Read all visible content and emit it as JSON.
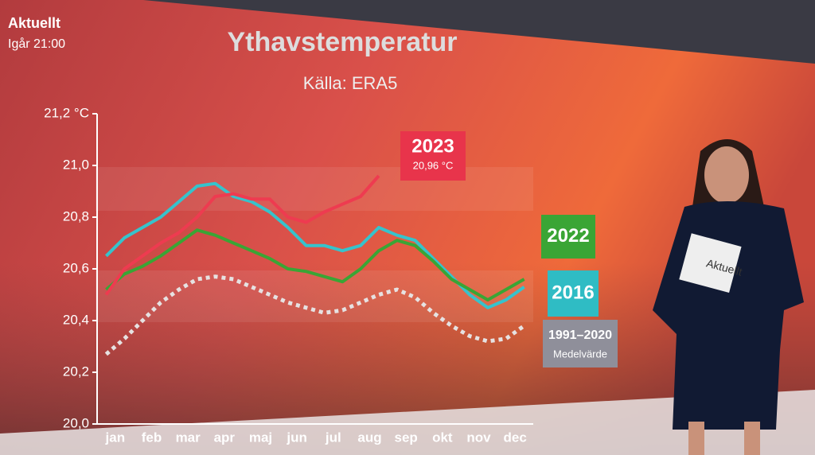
{
  "header": {
    "channel": "Aktuellt",
    "time": "Igår 21:00"
  },
  "chart_data": {
    "type": "line",
    "title": "Ythavstemperatur",
    "subtitle": "Källa: ERA5",
    "categories": [
      "jan",
      null,
      "feb",
      null,
      "mar",
      null,
      "apr",
      null,
      "maj",
      null,
      "jun",
      null,
      "jul",
      null,
      "aug",
      null,
      "sep",
      null,
      "okt",
      null,
      "nov",
      null,
      "dec",
      null
    ],
    "series": [
      {
        "name": "2016",
        "color": "#36c3cc",
        "values": [
          20.65,
          20.72,
          20.76,
          20.8,
          20.86,
          20.92,
          20.93,
          20.88,
          20.86,
          20.82,
          20.76,
          20.69,
          20.69,
          20.67,
          20.69,
          20.76,
          20.73,
          20.71,
          20.64,
          20.57,
          20.5,
          20.45,
          20.48,
          20.53
        ]
      },
      {
        "name": "2022",
        "color": "#3aa535",
        "values": [
          20.52,
          20.58,
          20.61,
          20.65,
          20.7,
          20.75,
          20.73,
          20.7,
          20.67,
          20.64,
          20.6,
          20.59,
          20.57,
          20.55,
          20.6,
          20.67,
          20.71,
          20.69,
          20.63,
          20.56,
          20.52,
          20.48,
          20.52,
          20.56
        ]
      },
      {
        "name": "1991–2020",
        "color": "#e6e2e2",
        "dotted": true,
        "values": [
          20.27,
          20.33,
          20.4,
          20.47,
          20.52,
          20.56,
          20.57,
          20.56,
          20.53,
          20.5,
          20.47,
          20.45,
          20.43,
          20.44,
          20.47,
          20.5,
          20.52,
          20.49,
          20.43,
          20.38,
          20.34,
          20.32,
          20.33,
          20.38
        ]
      },
      {
        "name": "2023",
        "color": "#ee3b50",
        "values": [
          20.5,
          20.6,
          20.65,
          20.7,
          20.74,
          20.8,
          20.88,
          20.89,
          20.87,
          20.87,
          20.8,
          20.78,
          20.82,
          20.85,
          20.88,
          20.96,
          null,
          null,
          null,
          null,
          null,
          null,
          null,
          null
        ]
      }
    ],
    "annotations": [
      "20,96 °C",
      "Medelvärde"
    ],
    "ylim": [
      20.0,
      21.2
    ],
    "yticks": [
      {
        "value": 20.0,
        "label": "20,0"
      },
      {
        "value": 20.2,
        "label": "20,2"
      },
      {
        "value": 20.4,
        "label": "20,4"
      },
      {
        "value": 20.6,
        "label": "20,6"
      },
      {
        "value": 20.8,
        "label": "20,8"
      },
      {
        "value": 21.0,
        "label": "21,0"
      },
      {
        "value": 21.2,
        "label": "21,2 °C"
      }
    ]
  }
}
